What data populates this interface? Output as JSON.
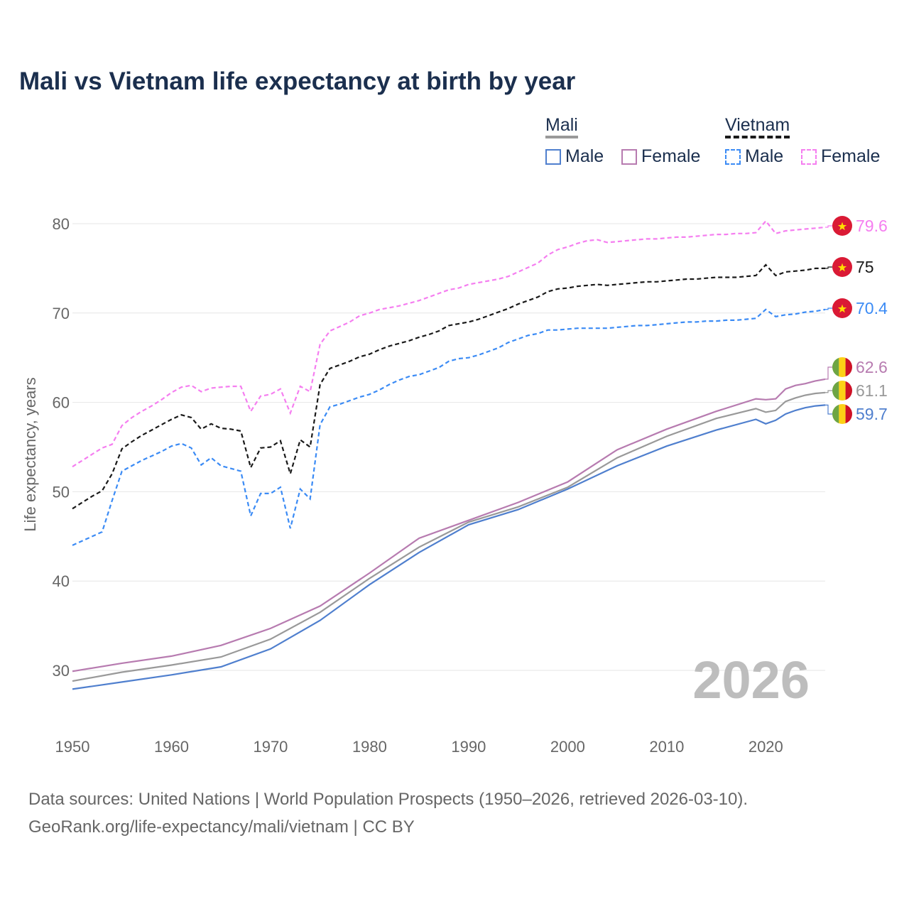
{
  "title": "Mali vs Vietnam life expectancy at birth by year",
  "legend": {
    "groups": [
      {
        "name": "Mali",
        "items": [
          {
            "label": "Male",
            "color": "#4f7fce",
            "dash": false
          },
          {
            "label": "Female",
            "color": "#b77bb0",
            "dash": false
          }
        ]
      },
      {
        "name": "Vietnam",
        "items": [
          {
            "label": "Male",
            "color": "#3b8bf5",
            "dash": true
          },
          {
            "label": "Female",
            "color": "#f57ef0",
            "dash": true
          }
        ]
      }
    ]
  },
  "source": [
    "Data sources: United Nations | World Population Prospects (1950–2026, retrieved 2026-03-10).",
    "GeoRank.org/life-expectancy/mali/vietnam | CC BY"
  ],
  "chart_data": {
    "type": "line",
    "title": "Mali vs Vietnam life expectancy at birth by year",
    "xlabel": "",
    "ylabel": "Life expectancy, years",
    "xlim": [
      1950,
      2026
    ],
    "ylim": [
      25,
      85
    ],
    "xticks": [
      1950,
      1960,
      1970,
      1980,
      1990,
      2000,
      2010,
      2020
    ],
    "yticks": [
      30,
      40,
      50,
      60,
      70,
      80
    ],
    "grid": true,
    "year_watermark": "2026",
    "series": [
      {
        "name": "Vietnam Female",
        "country": "Vietnam",
        "color": "#f57ef0",
        "dash": true,
        "end_label": "79.6",
        "x_start": 1950,
        "values": [
          52.8,
          53.5,
          54.2,
          54.9,
          55.3,
          57.4,
          58.3,
          59.0,
          59.6,
          60.3,
          61.1,
          61.7,
          61.9,
          61.2,
          61.6,
          61.7,
          61.8,
          61.8,
          59.0,
          60.7,
          60.9,
          61.5,
          58.8,
          61.8,
          61.2,
          66.5,
          68.0,
          68.5,
          69.0,
          69.7,
          70.0,
          70.4,
          70.6,
          70.8,
          71.1,
          71.4,
          71.8,
          72.2,
          72.6,
          72.8,
          73.2,
          73.4,
          73.6,
          73.8,
          74.1,
          74.6,
          75.1,
          75.6,
          76.5,
          77.1,
          77.4,
          77.8,
          78.1,
          78.2,
          77.9,
          78.0,
          78.1,
          78.2,
          78.3,
          78.3,
          78.4,
          78.5,
          78.5,
          78.6,
          78.7,
          78.8,
          78.8,
          78.9,
          78.9,
          79.0,
          80.3,
          78.9,
          79.2,
          79.3,
          79.4,
          79.5,
          79.6
        ]
      },
      {
        "name": "Vietnam",
        "country": "Vietnam",
        "color": "#1a1a1a",
        "dash": true,
        "end_label": "75",
        "x_start": 1950,
        "values": [
          48.1,
          48.8,
          49.5,
          50.1,
          52.0,
          54.8,
          55.6,
          56.3,
          56.9,
          57.5,
          58.1,
          58.6,
          58.3,
          57.0,
          57.6,
          57.1,
          57.0,
          56.8,
          52.7,
          54.9,
          55.0,
          55.7,
          52.0,
          55.8,
          55.0,
          62.0,
          63.8,
          64.2,
          64.6,
          65.1,
          65.4,
          65.9,
          66.3,
          66.6,
          66.9,
          67.3,
          67.6,
          68.0,
          68.6,
          68.8,
          69.0,
          69.3,
          69.7,
          70.1,
          70.5,
          71.0,
          71.4,
          71.8,
          72.4,
          72.7,
          72.8,
          73.0,
          73.1,
          73.2,
          73.1,
          73.2,
          73.3,
          73.4,
          73.5,
          73.5,
          73.6,
          73.7,
          73.8,
          73.8,
          73.9,
          74.0,
          74.0,
          74.0,
          74.1,
          74.2,
          75.4,
          74.2,
          74.6,
          74.7,
          74.8,
          75.0,
          75.0
        ]
      },
      {
        "name": "Vietnam Male",
        "country": "Vietnam",
        "color": "#3b8bf5",
        "dash": true,
        "end_label": "70.4",
        "x_start": 1950,
        "values": [
          44.0,
          44.5,
          45.0,
          45.5,
          49.0,
          52.3,
          52.9,
          53.5,
          54.0,
          54.5,
          55.1,
          55.4,
          54.9,
          53.0,
          53.8,
          52.9,
          52.6,
          52.3,
          47.3,
          49.8,
          49.8,
          50.5,
          45.9,
          50.3,
          49.2,
          57.5,
          59.5,
          59.8,
          60.2,
          60.6,
          60.9,
          61.4,
          62.0,
          62.5,
          62.9,
          63.1,
          63.5,
          63.9,
          64.6,
          64.9,
          65.0,
          65.3,
          65.7,
          66.1,
          66.7,
          67.1,
          67.5,
          67.7,
          68.1,
          68.1,
          68.2,
          68.3,
          68.3,
          68.3,
          68.3,
          68.4,
          68.5,
          68.6,
          68.6,
          68.7,
          68.8,
          68.9,
          69.0,
          69.0,
          69.1,
          69.1,
          69.2,
          69.2,
          69.3,
          69.4,
          70.4,
          69.6,
          69.8,
          69.9,
          70.1,
          70.2,
          70.4
        ]
      },
      {
        "name": "Mali Female",
        "country": "Mali",
        "color": "#b77bb0",
        "dash": false,
        "end_label": "62.6",
        "x": [
          1950,
          1955,
          1960,
          1965,
          1970,
          1975,
          1980,
          1985,
          1990,
          1995,
          2000,
          2005,
          2010,
          2015,
          2019,
          2020,
          2021,
          2022,
          2023,
          2024,
          2025,
          2026
        ],
        "values": [
          29.9,
          30.8,
          31.6,
          32.8,
          34.7,
          37.2,
          40.9,
          44.8,
          46.8,
          48.8,
          51.1,
          54.7,
          57.0,
          59.0,
          60.4,
          60.3,
          60.4,
          61.5,
          61.9,
          62.1,
          62.4,
          62.6
        ]
      },
      {
        "name": "Mali",
        "country": "Mali",
        "color": "#999999",
        "dash": false,
        "end_label": "61.1",
        "x": [
          1950,
          1955,
          1960,
          1965,
          1970,
          1975,
          1980,
          1985,
          1990,
          1995,
          2000,
          2005,
          2010,
          2015,
          2019,
          2020,
          2021,
          2022,
          2023,
          2024,
          2025,
          2026
        ],
        "values": [
          28.8,
          29.8,
          30.6,
          31.5,
          33.5,
          36.5,
          40.3,
          43.8,
          46.6,
          48.3,
          50.5,
          53.8,
          56.2,
          58.2,
          59.3,
          58.9,
          59.1,
          60.1,
          60.5,
          60.8,
          61.0,
          61.1
        ]
      },
      {
        "name": "Mali Male",
        "country": "Mali",
        "color": "#4f7fce",
        "dash": false,
        "end_label": "59.7",
        "x": [
          1950,
          1955,
          1960,
          1965,
          1970,
          1975,
          1980,
          1985,
          1990,
          1995,
          2000,
          2005,
          2010,
          2015,
          2019,
          2020,
          2021,
          2022,
          2023,
          2024,
          2025,
          2026
        ],
        "values": [
          27.9,
          28.7,
          29.5,
          30.4,
          32.4,
          35.6,
          39.6,
          43.2,
          46.3,
          48.0,
          50.3,
          52.9,
          55.1,
          56.9,
          58.1,
          57.6,
          58.0,
          58.7,
          59.1,
          59.4,
          59.6,
          59.7
        ]
      }
    ]
  }
}
